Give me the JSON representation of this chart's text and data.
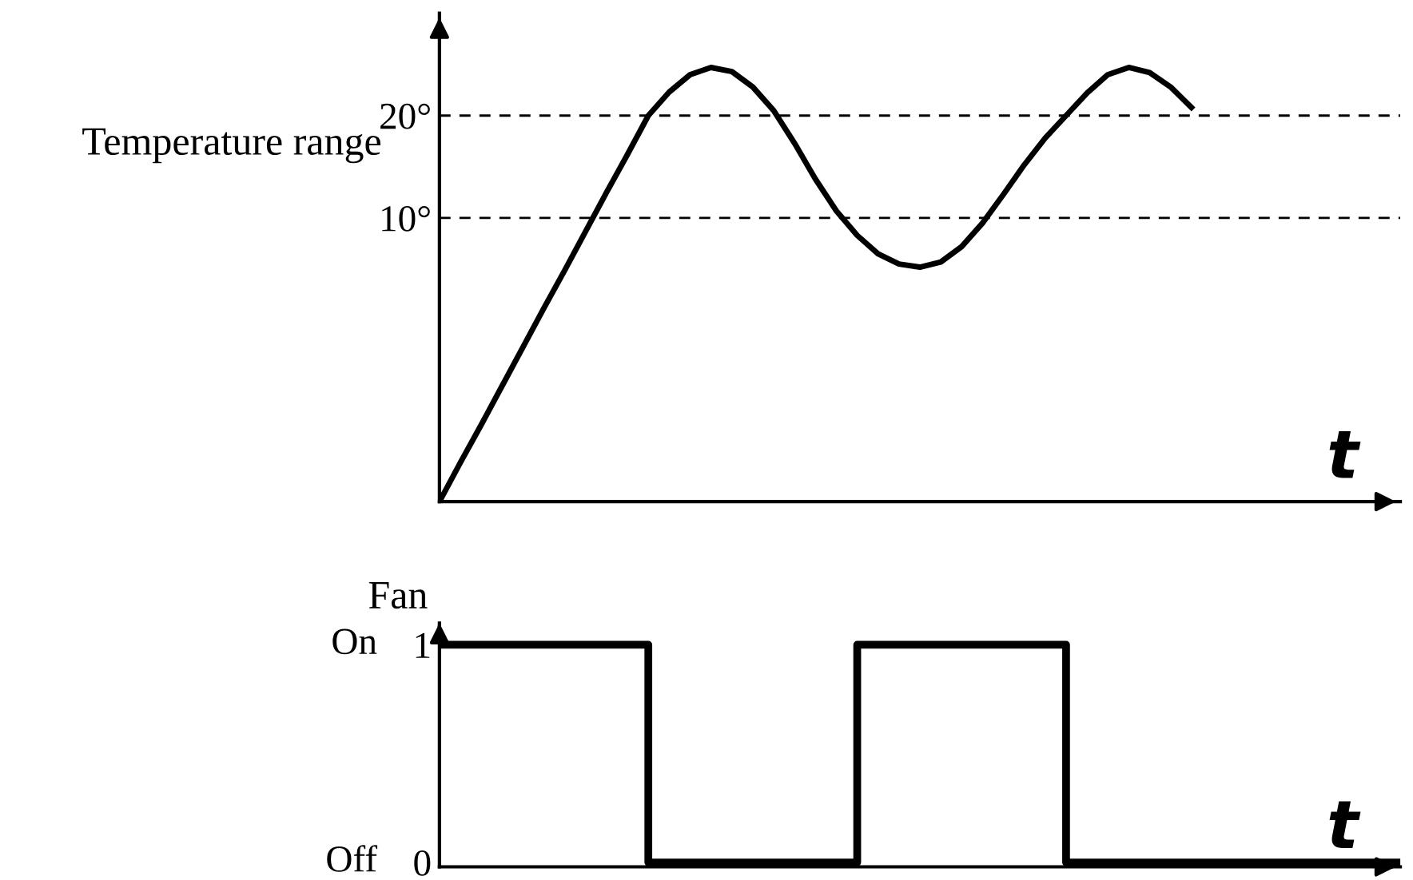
{
  "chart_data": [
    {
      "type": "line",
      "ylabel": "Temperature range",
      "xlabel": "t",
      "categories": [
        null,
        null,
        null,
        null,
        null,
        null,
        null,
        null,
        null,
        null,
        null,
        null,
        null,
        null,
        null,
        null,
        null,
        null,
        null,
        null,
        null,
        null,
        null,
        null,
        null,
        null,
        null,
        null,
        null,
        null,
        null,
        null,
        null,
        null,
        null,
        null,
        null,
        null,
        null,
        null,
        null,
        null,
        null,
        null,
        null,
        null,
        null
      ],
      "series": [
        {
          "color": "#000000",
          "values": [
            -17.7,
            -13.9,
            -10.2,
            -6.4,
            -2.6,
            1.2,
            4.9,
            8.7,
            12.5,
            16.2,
            20.0,
            22.3,
            24.0,
            24.7,
            24.3,
            22.8,
            20.5,
            17.3,
            13.8,
            10.7,
            8.3,
            6.5,
            5.5,
            5.2,
            5.7,
            7.2,
            9.5,
            12.3,
            15.2,
            17.8,
            20.0,
            22.2,
            24.0,
            24.7,
            24.2,
            22.8,
            20.8,
            null,
            null,
            null,
            null,
            null,
            null,
            null,
            null,
            null,
            null
          ]
        }
      ],
      "ylim": [
        -17.7,
        30
      ],
      "yticks": [
        {
          "value": 20,
          "label": "20°"
        },
        {
          "value": 10,
          "label": "10°"
        }
      ],
      "ref_lines": [
        {
          "axis": "y",
          "value": 20,
          "line_style": "dashed",
          "color": "#000000"
        },
        {
          "axis": "y",
          "value": 10,
          "line_style": "dashed",
          "color": "#000000"
        }
      ],
      "grid": false,
      "legend": false
    },
    {
      "type": "step",
      "ylabel": "Fan",
      "xlabel": "t",
      "categories": [
        null,
        null,
        null,
        null,
        null,
        null,
        null,
        null,
        null,
        null,
        null,
        null,
        null,
        null,
        null,
        null,
        null,
        null,
        null,
        null,
        null,
        null,
        null,
        null,
        null,
        null,
        null,
        null,
        null,
        null,
        null,
        null,
        null,
        null,
        null,
        null,
        null,
        null,
        null,
        null,
        null,
        null,
        null,
        null,
        null,
        null,
        null
      ],
      "series": [
        {
          "color": "#000000",
          "values": [
            1,
            1,
            1,
            1,
            1,
            1,
            1,
            1,
            1,
            1,
            0,
            0,
            0,
            0,
            0,
            0,
            0,
            0,
            0,
            0,
            1,
            1,
            1,
            1,
            1,
            1,
            1,
            1,
            1,
            1,
            0,
            0,
            0,
            0,
            0,
            0,
            0,
            0,
            0,
            0,
            0,
            0,
            0,
            0,
            0,
            0,
            0
          ]
        }
      ],
      "ylim": [
        -0.02,
        1.1
      ],
      "yticks": [
        1,
        0
      ],
      "annotations": [
        "On",
        "Off"
      ],
      "grid": false,
      "legend": false
    }
  ]
}
